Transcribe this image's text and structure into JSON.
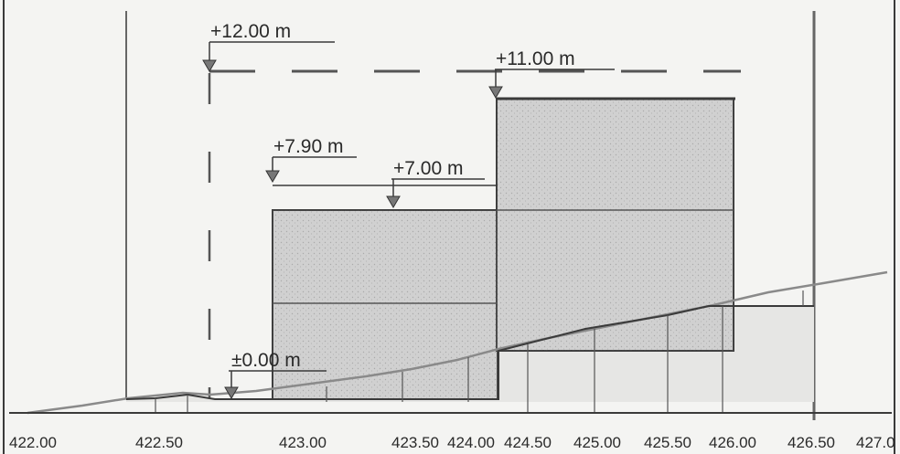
{
  "diagram": {
    "elevation_labels": {
      "top": "+12.00 m",
      "roof_high": "+11.00 m",
      "roof_low": "+7.90 m",
      "eave": "+7.00 m",
      "ground": "±0.00 m"
    },
    "axis_ticks": [
      "422.00",
      "422.50",
      "423.00",
      "423.50",
      "424.00",
      "424.50",
      "425.00",
      "425.50",
      "426.00",
      "426.50",
      "427.0"
    ]
  },
  "colors": {
    "paper": "#f4f4f2",
    "line": "#3a3a3a",
    "fill": "#cfcfcf",
    "dash": "#555555"
  }
}
